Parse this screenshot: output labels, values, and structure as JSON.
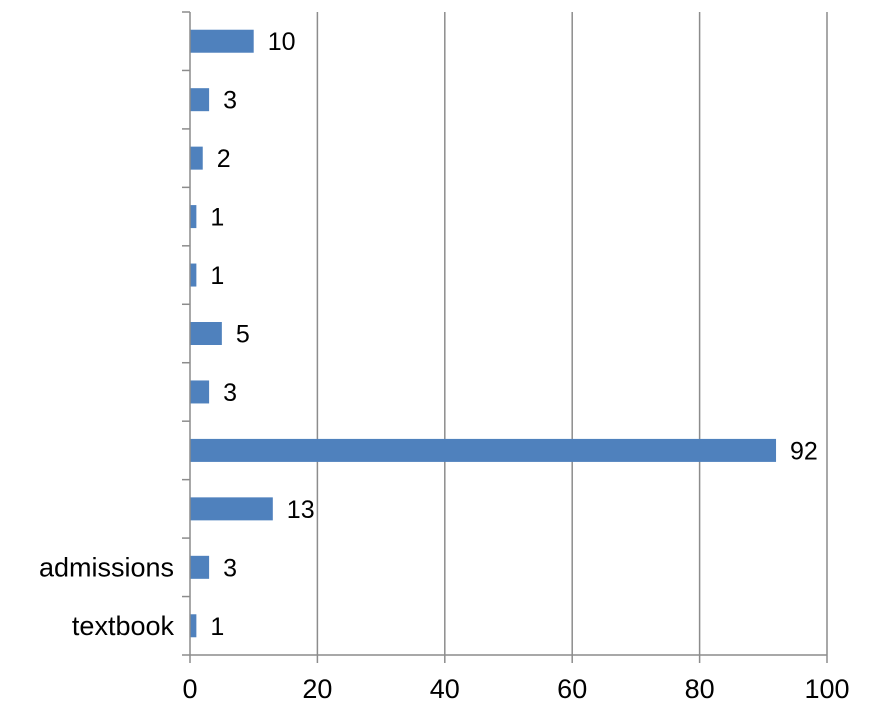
{
  "chart_data": {
    "type": "bar",
    "orientation": "horizontal",
    "categories": [
      "textbook",
      "admissions",
      "",
      "",
      "",
      "",
      "",
      "",
      "",
      "",
      ""
    ],
    "values": [
      1,
      3,
      13,
      92,
      3,
      5,
      1,
      1,
      2,
      3,
      10
    ],
    "data_labels": [
      "1",
      "3",
      "13",
      "92",
      "3",
      "5",
      "1",
      "1",
      "2",
      "3",
      "10"
    ],
    "xlim": [
      0,
      100
    ],
    "x_ticks": [
      0,
      20,
      40,
      60,
      80,
      100
    ],
    "x_tick_labels": [
      "0",
      "20",
      "40",
      "60",
      "80",
      "100"
    ],
    "grid": "vertical major gridlines",
    "legend": "none",
    "bar_color": "#4F81BD",
    "grid_color": "#8C8C8C",
    "title": "",
    "xlabel": "",
    "ylabel": ""
  }
}
